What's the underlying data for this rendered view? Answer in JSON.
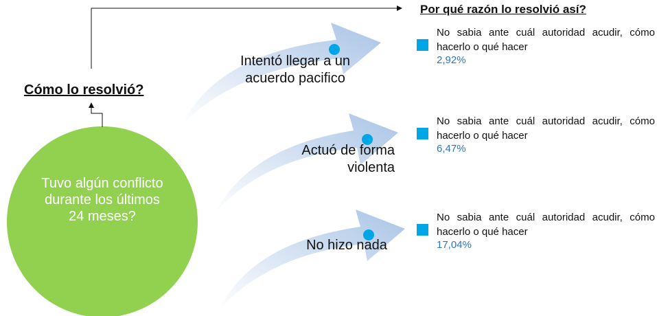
{
  "question": "Tuvo algún conflicto durante los últimos 24 meses?",
  "how_label": "Cómo lo resolvió?",
  "why_label": "Por qué razón lo resolvió así?",
  "branches": [
    {
      "label": "Intentó llegar a un acuerdo pacifico",
      "reason": "No sabia ante cuál autoridad acudir, cómo hacerlo o qué hacer",
      "percent": "2,92%"
    },
    {
      "label": "Actuó de forma violenta",
      "reason": "No sabia ante cuál autoridad acudir, cómo hacerlo o qué hacer",
      "percent": "6,47%"
    },
    {
      "label": "No hizo nada",
      "reason": "No sabia ante cuál autoridad acudir, cómo hacerlo o qué hacer",
      "percent": "17,04%"
    }
  ]
}
